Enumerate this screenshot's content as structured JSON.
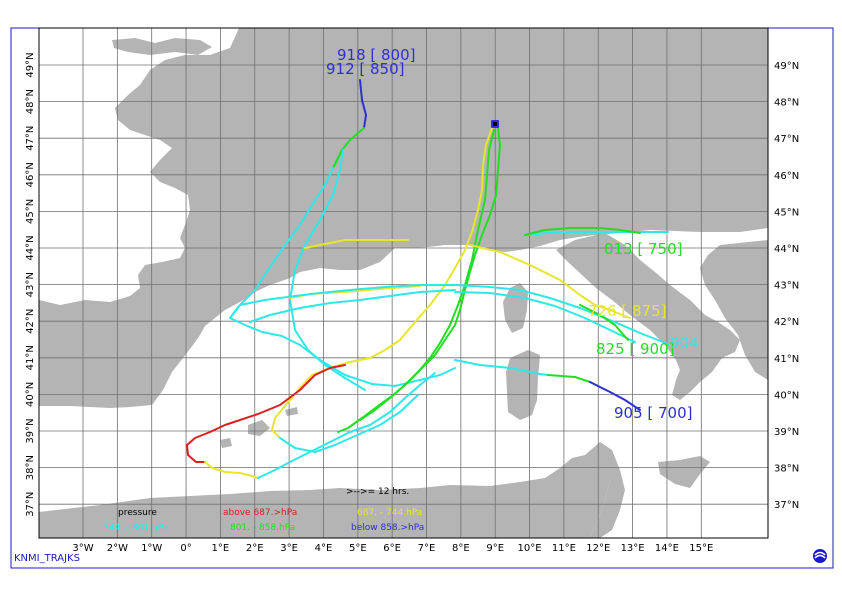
{
  "map": {
    "lon_labels": [
      "3°W",
      "2°W",
      "1°W",
      "0°",
      "1°E",
      "2°E",
      "3°E",
      "4°E",
      "5°E",
      "6°E",
      "7°E",
      "8°E",
      "9°E",
      "10°E",
      "11°E",
      "12°E",
      "13°E",
      "14°E",
      "15°E"
    ],
    "lat_labels_right": [
      "49°N",
      "48°N",
      "47°N",
      "46°N",
      "45°N",
      "44°N",
      "43°N",
      "42°N",
      "41°N",
      "40°N",
      "39°N",
      "38°N",
      "37°N"
    ],
    "lat_labels_left": [
      "49°N",
      "48°N",
      "47°N",
      "46°N",
      "45°N",
      "44°N",
      "43°N",
      "42°N",
      "41°N",
      "40°N",
      "39°N",
      "38°N",
      "37°N"
    ],
    "colors": {
      "land": "#b4b4b4",
      "sea": "#ffffff",
      "grid": "#707070",
      "frame": "#1a1ac8"
    }
  },
  "trajectories": [
    {
      "color": "#2e2ed8",
      "label": "918 [ 800]"
    },
    {
      "color": "#2e2ed8",
      "label": "912 [ 850]"
    },
    {
      "color": "#22dd22",
      "label": "013 [ 750]"
    },
    {
      "color": "#e6e62a",
      "label": "726 [ 875]"
    },
    {
      "color": "#22dd22",
      "label": "825 [ 900]"
    },
    {
      "color": "#2ee8e8",
      "label": "904"
    },
    {
      "color": "#2e2ed8",
      "label": "905 [ 700]"
    }
  ],
  "legend": {
    "step": ">-->= 12 hrs.",
    "pressure": "pressure",
    "above": "above  687.>hPa",
    "yellow_range": "687.  -  744.hPa",
    "cyan_range": "744.  -   801.hPa",
    "green_range": "801.  -   858.hPa",
    "below": "below   858.>hPa"
  },
  "footer": "KNMI_TRAJKS"
}
